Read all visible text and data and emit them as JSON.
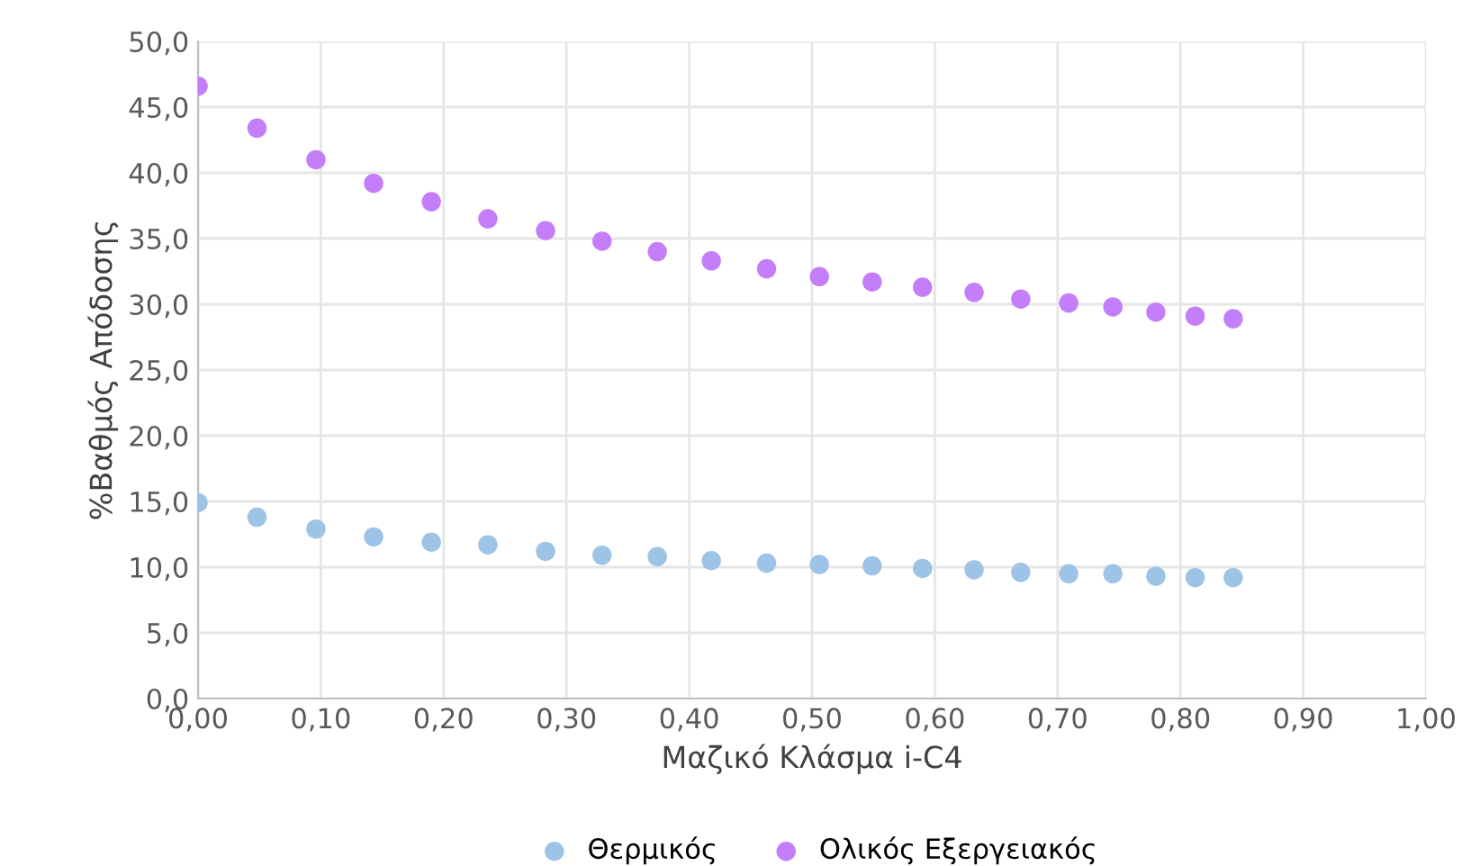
{
  "chart_data": {
    "type": "scatter",
    "xlabel": "Μαζικό Κλάσμα i-C4",
    "ylabel": "%Βαθμός Απόδοσης",
    "x": [
      0,
      0.048,
      0.096,
      0.143,
      0.19,
      0.236,
      0.283,
      0.329,
      0.374,
      0.418,
      0.463,
      0.506,
      0.549,
      0.59,
      0.632,
      0.67,
      0.709,
      0.745,
      0.78,
      0.812,
      0.843
    ],
    "series": [
      {
        "name": "Θερμικός",
        "color": "#9dc3e6",
        "values": [
          14.9,
          13.8,
          12.9,
          12.3,
          11.9,
          11.7,
          11.2,
          10.9,
          10.8,
          10.5,
          10.3,
          10.2,
          10.1,
          9.9,
          9.8,
          9.6,
          9.5,
          9.5,
          9.3,
          9.2,
          9.2
        ]
      },
      {
        "name": "Ολικός Εξεργειακός",
        "color": "#c47ef9",
        "values": [
          46.6,
          43.4,
          41.0,
          39.2,
          37.8,
          36.5,
          35.6,
          34.8,
          34.0,
          33.3,
          32.7,
          32.1,
          31.7,
          31.3,
          30.9,
          30.4,
          30.1,
          29.8,
          29.4,
          29.1,
          28.9
        ]
      }
    ],
    "xlim": [
      0,
      1
    ],
    "ylim": [
      0,
      50
    ],
    "xticks": [
      {
        "value": 0,
        "label": "0,00"
      },
      {
        "value": 0.1,
        "label": "0,10"
      },
      {
        "value": 0.2,
        "label": "0,20"
      },
      {
        "value": 0.3,
        "label": "0,30"
      },
      {
        "value": 0.4,
        "label": "0,40"
      },
      {
        "value": 0.5,
        "label": "0,50"
      },
      {
        "value": 0.6,
        "label": "0,60"
      },
      {
        "value": 0.7,
        "label": "0,70"
      },
      {
        "value": 0.8,
        "label": "0,80"
      },
      {
        "value": 0.9,
        "label": "0,90"
      },
      {
        "value": 1,
        "label": "1,00"
      }
    ],
    "yticks": [
      {
        "value": 0,
        "label": "0,0"
      },
      {
        "value": 5,
        "label": "5,0"
      },
      {
        "value": 10,
        "label": "10,0"
      },
      {
        "value": 15,
        "label": "15,0"
      },
      {
        "value": 20,
        "label": "20,0"
      },
      {
        "value": 25,
        "label": "25,0"
      },
      {
        "value": 30,
        "label": "30,0"
      },
      {
        "value": 35,
        "label": "35,0"
      },
      {
        "value": 40,
        "label": "40,0"
      },
      {
        "value": 45,
        "label": "45,0"
      },
      {
        "value": 50,
        "label": "50,0"
      }
    ],
    "grid": true,
    "legend": "bottom",
    "marker": "circle"
  }
}
